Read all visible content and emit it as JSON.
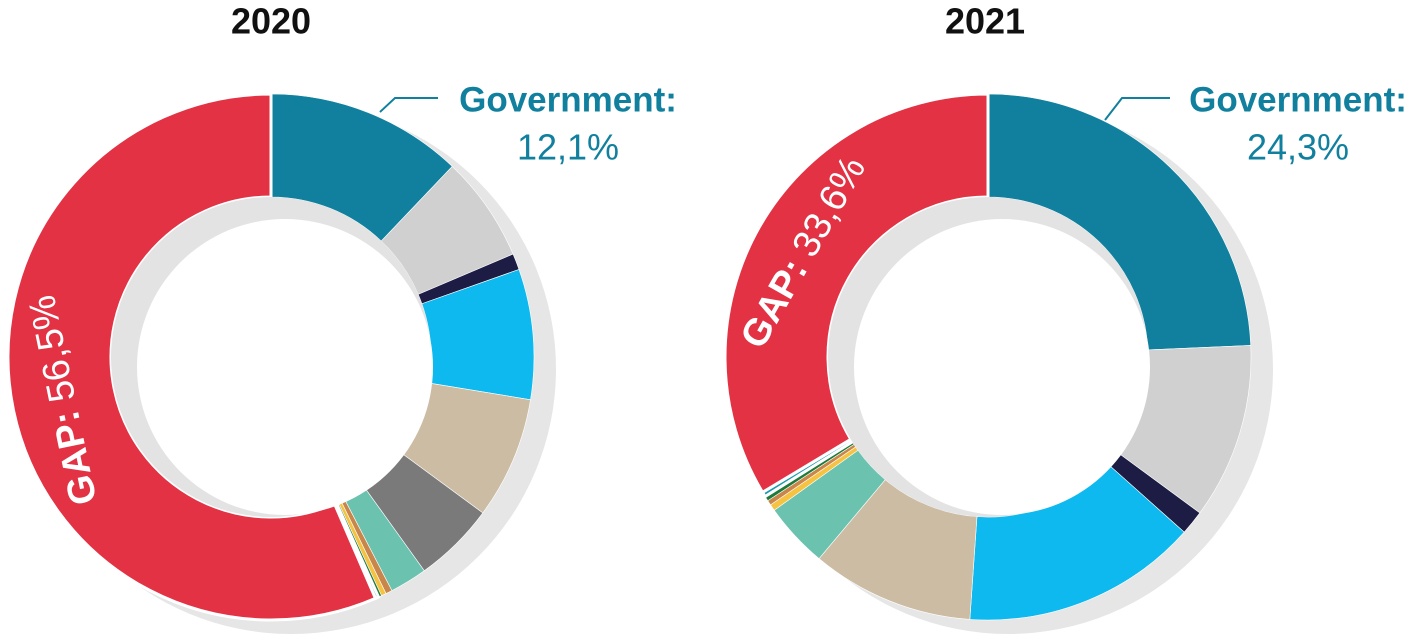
{
  "chart_data": [
    {
      "type": "pie",
      "title": "2020",
      "categories": [
        "Government:",
        null,
        null,
        null,
        null,
        null,
        null,
        null,
        null,
        null,
        null,
        "GAP:"
      ],
      "values": [
        12.1,
        6.5,
        1,
        8,
        7.5,
        5,
        2.3,
        0.4,
        0.3,
        0.2,
        0.2,
        56.5
      ],
      "value_labels": [
        "12,1%",
        null,
        null,
        null,
        null,
        null,
        null,
        null,
        null,
        null,
        null,
        "56,5%"
      ],
      "colors": [
        "#11809e",
        "#d0d0d0",
        "#1c1c45",
        "#0db9ef",
        "#cbbca3",
        "#7a7a7a",
        "#6bc2ae",
        "#c8864a",
        "#f5c242",
        "#1e7a3a",
        "#1a9bb0",
        "#e23244"
      ]
    },
    {
      "type": "pie",
      "title": "2021",
      "categories": [
        "Government:",
        null,
        null,
        null,
        null,
        null,
        null,
        null,
        null,
        null,
        "GAP:"
      ],
      "values": [
        24.3,
        10.8,
        1.5,
        14.5,
        10,
        4,
        0.4,
        0.3,
        0.3,
        0.3,
        33.6
      ],
      "value_labels": [
        "24,3%",
        null,
        null,
        null,
        null,
        null,
        null,
        null,
        null,
        null,
        "33,6%"
      ],
      "colors": [
        "#11809e",
        "#d0d0d0",
        "#1c1c45",
        "#0db9ef",
        "#cbbca3",
        "#6bc2ae",
        "#f5c242",
        "#c8864a",
        "#1e7a3a",
        "#1a9bb0",
        "#e23244"
      ]
    }
  ]
}
